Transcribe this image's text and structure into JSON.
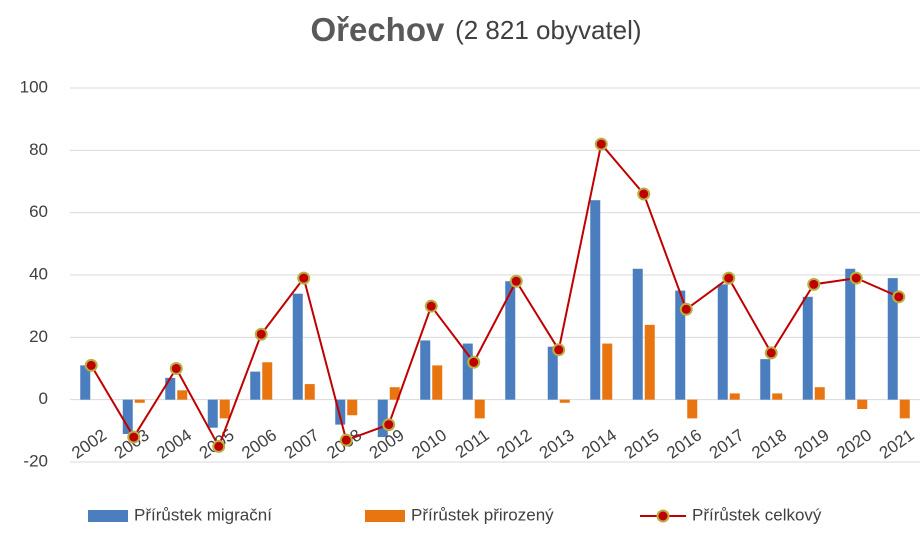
{
  "chart_data": {
    "type": "bar_line",
    "title": "Ořechov",
    "subtitle": "(2 821 obyvatel)",
    "categories": [
      "2002",
      "2003",
      "2004",
      "2005",
      "2006",
      "2007",
      "2008",
      "2009",
      "2010",
      "2011",
      "2012",
      "2013",
      "2014",
      "2015",
      "2016",
      "2017",
      "2018",
      "2019",
      "2020",
      "2021"
    ],
    "series": [
      {
        "name": "Přírůstek migrační",
        "type": "bar",
        "color": "#4a7ebf",
        "values": [
          11,
          -11,
          7,
          -9,
          9,
          34,
          -8,
          -12,
          19,
          18,
          38,
          17,
          64,
          42,
          35,
          37,
          13,
          33,
          42,
          39
        ]
      },
      {
        "name": "Přírůstek přirozený",
        "type": "bar",
        "color": "#e8750f",
        "values": [
          0,
          -1,
          3,
          -6,
          12,
          5,
          -5,
          4,
          11,
          -6,
          0,
          -1,
          18,
          24,
          -6,
          2,
          2,
          4,
          -3,
          -6
        ]
      },
      {
        "name": "Přírůstek celkový",
        "type": "line",
        "color": "#c00000",
        "marker_edge_color": "#b8b040",
        "values": [
          11,
          -12,
          10,
          -15,
          21,
          39,
          -13,
          -8,
          30,
          12,
          38,
          16,
          82,
          66,
          29,
          39,
          15,
          37,
          39,
          33
        ]
      }
    ],
    "ylim": [
      -20,
      100
    ],
    "yticks": [
      -20,
      0,
      20,
      40,
      60,
      80,
      100
    ],
    "grid": true,
    "legend": "bottom"
  }
}
